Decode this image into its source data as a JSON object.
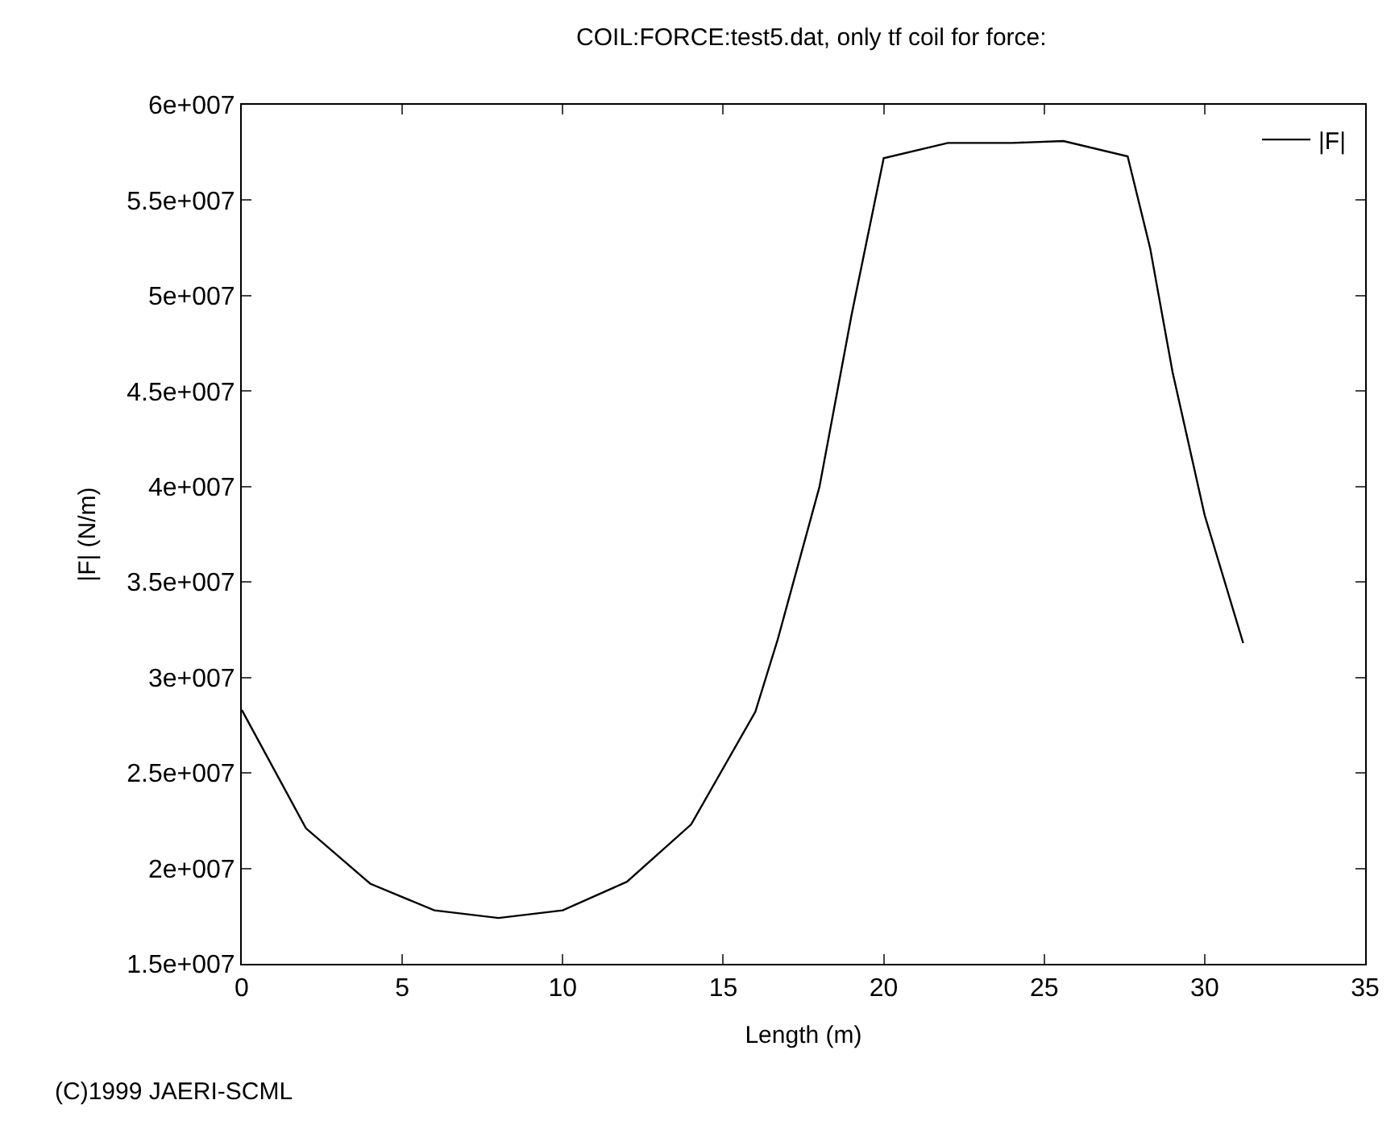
{
  "chart_data": {
    "type": "line",
    "title": "COIL:FORCE:test5.dat, only tf coil for force:",
    "xlabel": "Length (m)",
    "ylabel": "|F| (N/m)",
    "series": [
      {
        "name": "|F|",
        "color": "#000000",
        "x": [
          0,
          2,
          4,
          6,
          8,
          10,
          12,
          14,
          16,
          16.7,
          18,
          19,
          20,
          22,
          24,
          25.6,
          27.6,
          28.3,
          29,
          30,
          31.2
        ],
        "values": [
          28300000,
          22100000,
          19200000,
          17800000,
          17400000,
          17800000,
          19300000,
          22300000,
          28200000,
          32000000,
          40000000,
          49000000,
          57200000,
          58000000,
          58000000,
          58100000,
          57300000,
          52500000,
          46000000,
          38500000,
          31800000
        ]
      }
    ],
    "xlim": [
      0,
      35
    ],
    "xticks": [
      0,
      5,
      10,
      15,
      20,
      25,
      30,
      35
    ],
    "ylim": [
      15000000,
      60000000
    ],
    "yticks": [
      {
        "value": 15000000,
        "label": "1.5e+007"
      },
      {
        "value": 20000000,
        "label": "2e+007"
      },
      {
        "value": 25000000,
        "label": "2.5e+007"
      },
      {
        "value": 30000000,
        "label": "3e+007"
      },
      {
        "value": 35000000,
        "label": "3.5e+007"
      },
      {
        "value": 40000000,
        "label": "4e+007"
      },
      {
        "value": 45000000,
        "label": "4.5e+007"
      },
      {
        "value": 50000000,
        "label": "5e+007"
      },
      {
        "value": 55000000,
        "label": "5.5e+007"
      },
      {
        "value": 60000000,
        "label": "6e+007"
      }
    ],
    "grid": false,
    "legend": "top right",
    "marker": "none",
    "line_style": "solid",
    "annotations": [
      "(C)1999 JAERI-SCML"
    ]
  }
}
